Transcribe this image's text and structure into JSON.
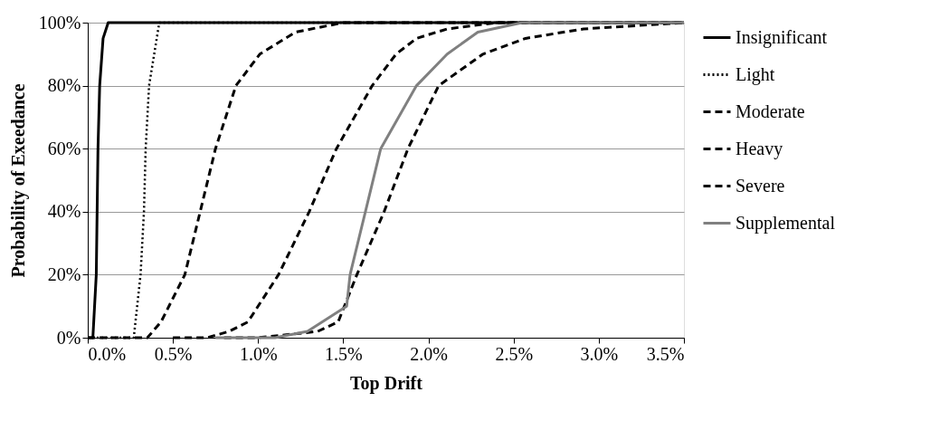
{
  "chart_data": {
    "type": "line",
    "xlabel": "Top Drift",
    "ylabel": "Probability of Exeedance",
    "xlim": [
      0,
      3.5
    ],
    "ylim": [
      0,
      100
    ],
    "xticks": [
      {
        "value": 0,
        "label": "0.0%"
      },
      {
        "value": 0.5,
        "label": "0.5%"
      },
      {
        "value": 1,
        "label": "1.0%"
      },
      {
        "value": 1.5,
        "label": "1.5%"
      },
      {
        "value": 2,
        "label": "2.0%"
      },
      {
        "value": 2.5,
        "label": "2.5%"
      },
      {
        "value": 3,
        "label": "3.0%"
      },
      {
        "value": 3.5,
        "label": "3.5%"
      }
    ],
    "yticks": [
      {
        "value": 0,
        "label": "0%"
      },
      {
        "value": 20,
        "label": "20%"
      },
      {
        "value": 40,
        "label": "40%"
      },
      {
        "value": 60,
        "label": "60%"
      },
      {
        "value": 80,
        "label": "80%"
      },
      {
        "value": 100,
        "label": "100%"
      }
    ],
    "grid": "y",
    "legend": "right",
    "marker": "none",
    "series": [
      {
        "name": "Insignificant",
        "color": "#000000",
        "line_style": "solid",
        "x": [
          0,
          0.03,
          0.05,
          0.06,
          0.07,
          0.09,
          0.12,
          3.5
        ],
        "values": [
          0,
          0,
          20,
          60,
          80,
          95,
          100,
          100
        ]
      },
      {
        "name": "Light",
        "color": "#000000",
        "line_style": "dotted",
        "x": [
          0,
          0.27,
          0.31,
          0.33,
          0.34,
          0.36,
          0.42,
          3.5
        ],
        "values": [
          0,
          0,
          20,
          40,
          60,
          80,
          100,
          100
        ]
      },
      {
        "name": "Moderate",
        "color": "#000000",
        "line_style": "dashed",
        "x": [
          0,
          0.35,
          0.43,
          0.57,
          0.66,
          0.75,
          0.87,
          1.01,
          1.22,
          1.5,
          3.5
        ],
        "values": [
          0,
          0,
          5,
          20,
          40,
          60,
          80,
          90,
          97,
          100,
          100
        ]
      },
      {
        "name": "Heavy",
        "color": "#000000",
        "line_style": "dashed",
        "x": [
          0.5,
          0.7,
          0.83,
          0.94,
          1.12,
          1.3,
          1.46,
          1.67,
          1.81,
          1.93,
          2.11,
          2.4,
          3.5
        ],
        "values": [
          0,
          0,
          2,
          5,
          20,
          40,
          60,
          80,
          90,
          95,
          98,
          100,
          100
        ]
      },
      {
        "name": "Severe",
        "color": "#000000",
        "line_style": "dashed",
        "x": [
          0.8,
          1.0,
          1.35,
          1.47,
          1.58,
          1.74,
          1.88,
          2.06,
          2.32,
          2.57,
          2.91,
          3.5
        ],
        "values": [
          0,
          0,
          2,
          5,
          20,
          40,
          60,
          80,
          90,
          95,
          98,
          100
        ]
      },
      {
        "name": "Supplemental",
        "color": "#808080",
        "line_style": "solid",
        "x": [
          0.75,
          1.1,
          1.29,
          1.52,
          1.54,
          1.63,
          1.72,
          1.93,
          2.11,
          2.29,
          2.55,
          3.5
        ],
        "values": [
          0,
          0,
          2,
          10,
          20,
          40,
          60,
          80,
          90,
          97,
          100,
          100
        ]
      }
    ]
  }
}
